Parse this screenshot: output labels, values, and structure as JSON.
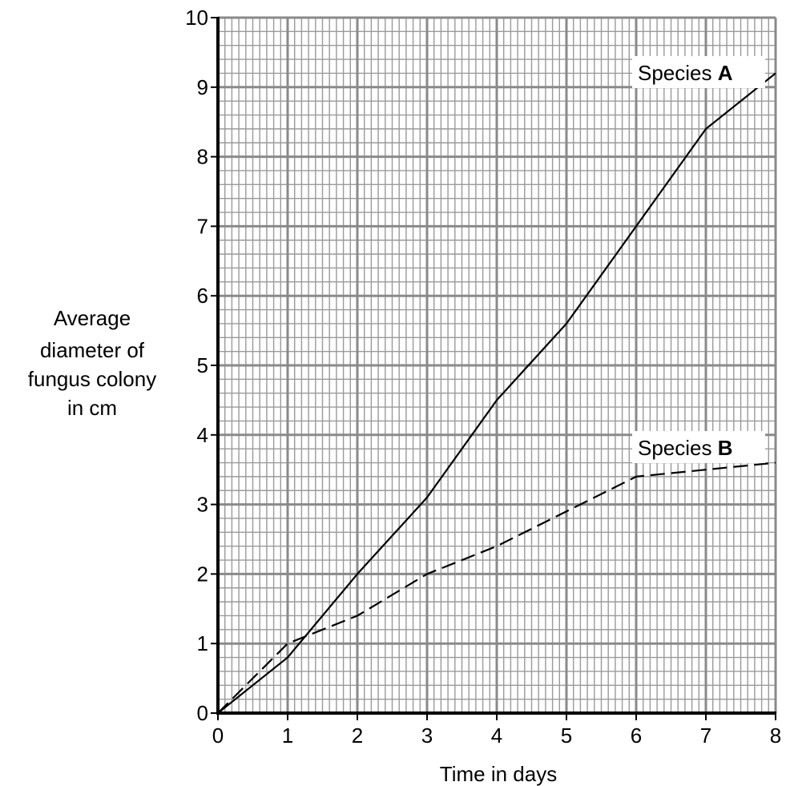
{
  "chart_data": {
    "type": "line",
    "xlabel": "Time in days",
    "ylabel_lines": [
      "Average",
      "diameter of",
      "fungus colony",
      "in cm"
    ],
    "xlim": [
      0,
      8
    ],
    "ylim": [
      0,
      10
    ],
    "x_ticks": [
      "0",
      "1",
      "2",
      "3",
      "4",
      "5",
      "6",
      "7",
      "8"
    ],
    "y_ticks": [
      "0",
      "1",
      "2",
      "3",
      "4",
      "5",
      "6",
      "7",
      "8",
      "9",
      "10"
    ],
    "grid": true,
    "series": [
      {
        "name_prefix": "Species ",
        "name_letter": "A",
        "line_style": "solid",
        "x": [
          0,
          1,
          2,
          3,
          4,
          5,
          6,
          7,
          8
        ],
        "y": [
          0,
          0.8,
          2.0,
          3.1,
          4.5,
          5.6,
          7.0,
          8.4,
          9.2
        ]
      },
      {
        "name_prefix": "Species ",
        "name_letter": "B",
        "line_style": "dashed",
        "x": [
          0,
          1,
          2,
          3,
          4,
          5,
          6,
          7,
          8
        ],
        "y": [
          0,
          1.0,
          1.4,
          2.0,
          2.4,
          2.9,
          3.4,
          3.5,
          3.6
        ]
      }
    ]
  },
  "colors": {
    "grid_major": "#8a8a8a",
    "grid_minor": "#9a9a9a",
    "line": "#000000"
  }
}
